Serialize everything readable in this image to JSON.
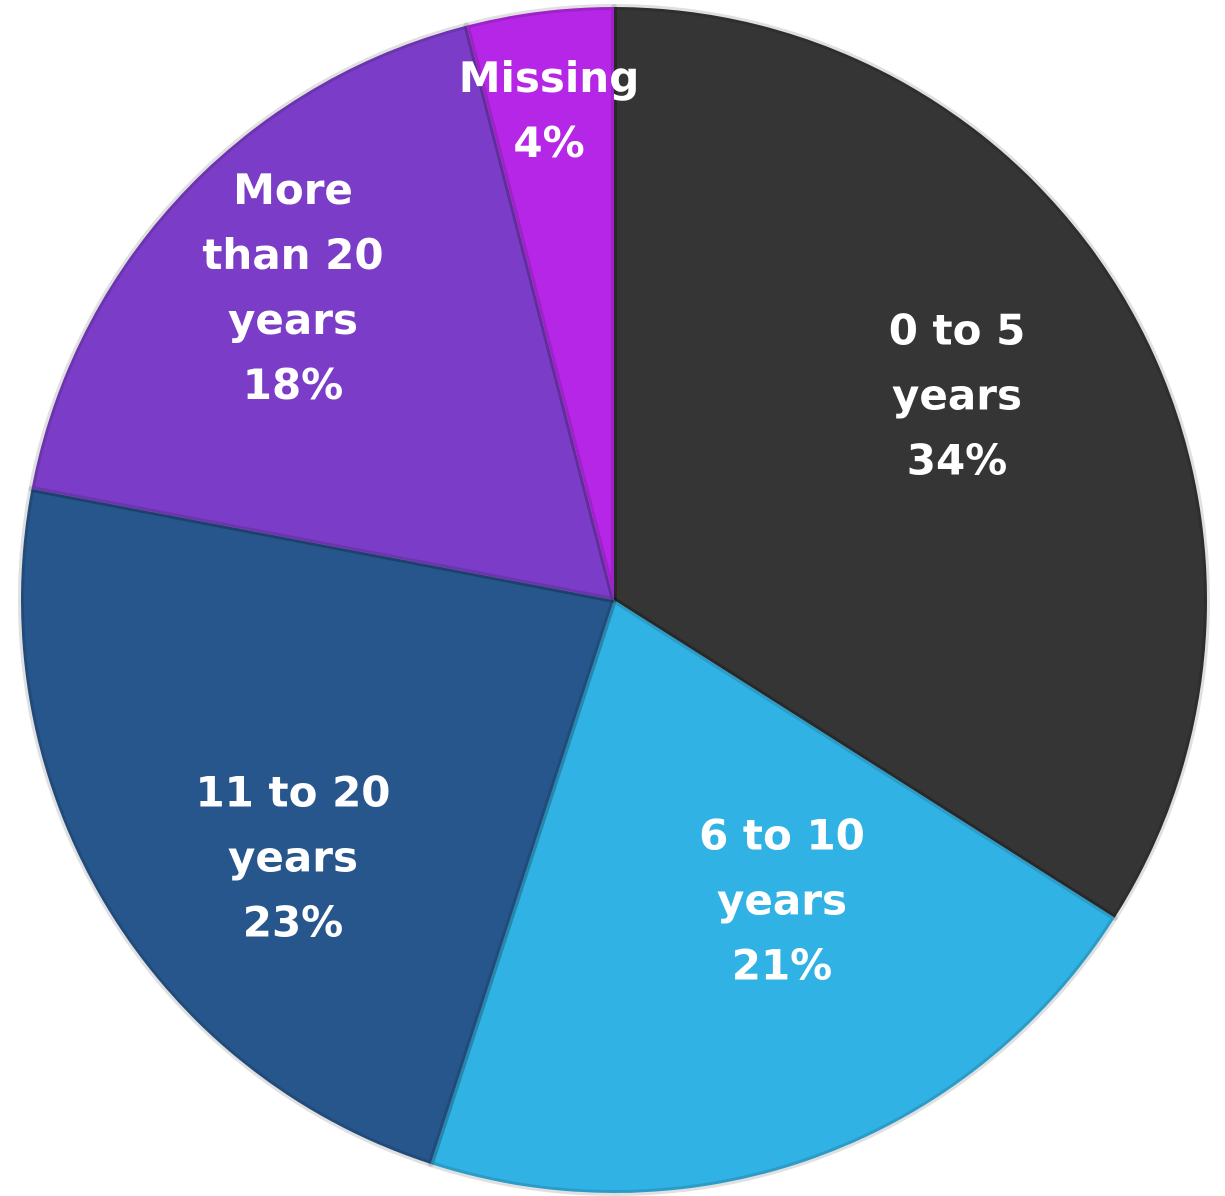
{
  "chart_data": {
    "type": "pie",
    "categories": [
      "0 to 5 years",
      "6 to 10 years",
      "11 to 20 years",
      "More than 20 years",
      "Missing"
    ],
    "values": [
      34,
      21,
      23,
      18,
      4
    ],
    "value_labels": [
      "34%",
      "21%",
      "23%",
      "18%",
      "4%"
    ],
    "colors": [
      "#353535",
      "#31b2e4",
      "#26568c",
      "#7b3dc8",
      "#b526e6"
    ]
  }
}
